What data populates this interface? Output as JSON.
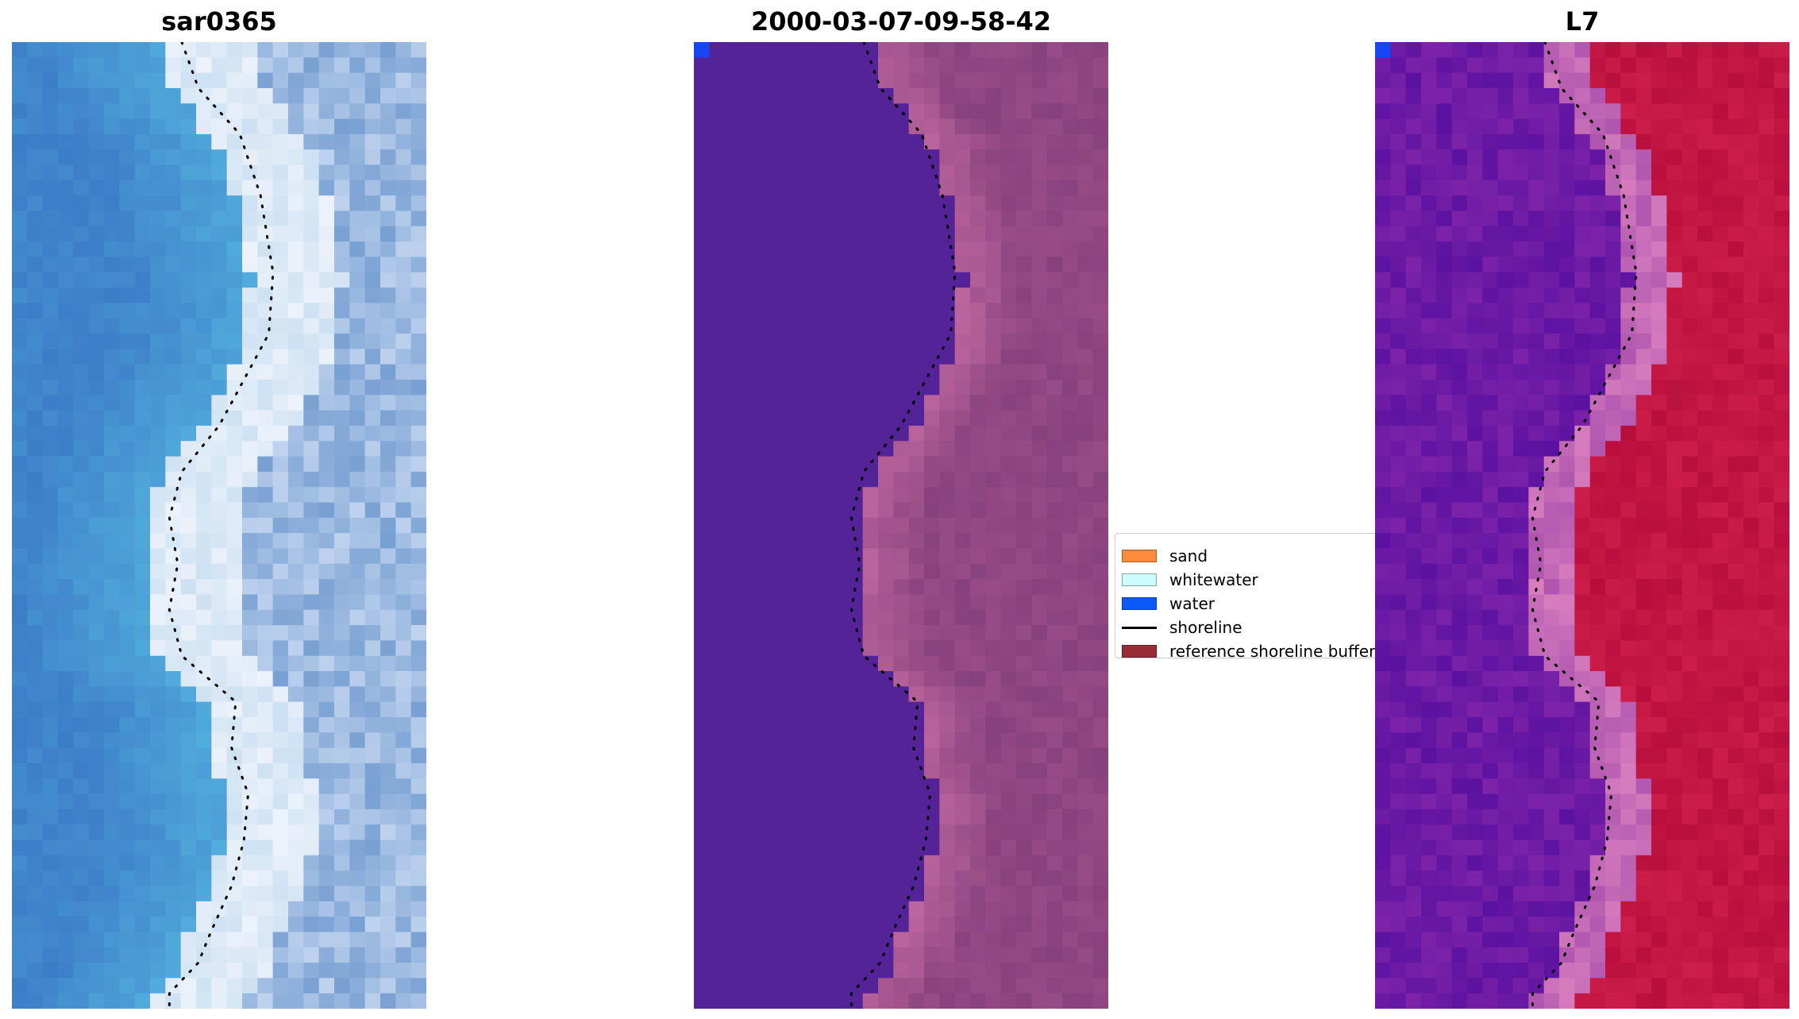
{
  "panels": [
    {
      "title": "sar0365",
      "style": "rgb"
    },
    {
      "title": "2000-03-07-09-58-42",
      "style": "classified"
    },
    {
      "title": "L7",
      "style": "index"
    }
  ],
  "legend": {
    "items": [
      {
        "label": "sand",
        "color": "#ff8c3d",
        "kind": "patch"
      },
      {
        "label": "whitewater",
        "color": "#ccfcff",
        "kind": "patch"
      },
      {
        "label": "water",
        "color": "#0a5aff",
        "kind": "patch"
      },
      {
        "label": "shoreline",
        "color": "#000000",
        "kind": "line"
      },
      {
        "label": "reference shoreline buffer",
        "color": "#9a2a36",
        "kind": "patch"
      }
    ]
  },
  "colors": {
    "water_class": "#532397",
    "water_pixel_marker": "#1646f5",
    "land_class": "#8f4a87",
    "index_water": "#6a18a8",
    "index_land": "#c10d40"
  }
}
